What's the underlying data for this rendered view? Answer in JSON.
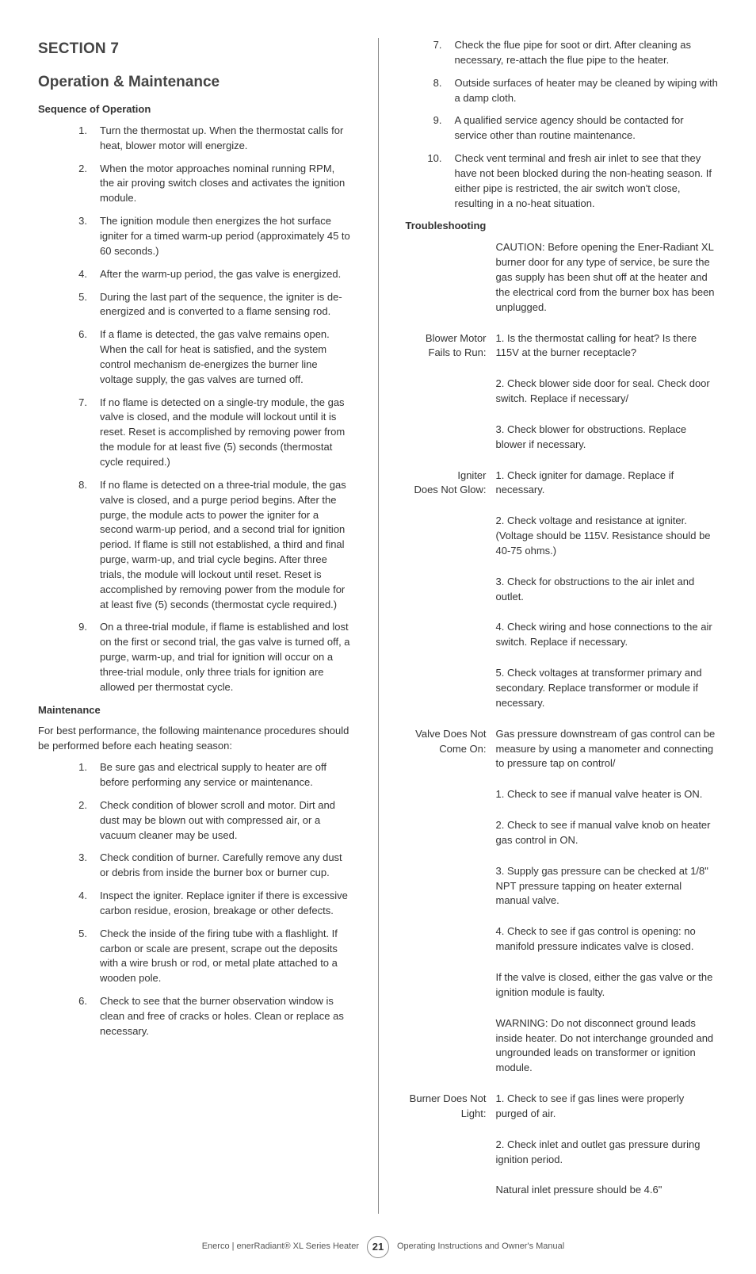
{
  "section_label": "SECTION 7",
  "section_title": "Operation & Maintenance",
  "sequence_heading": "Sequence of Operation",
  "sequence_items": [
    "Turn the thermostat up. When the thermostat calls for heat, blower motor will energize.",
    "When the motor approaches nominal running RPM, the air proving switch closes and activates the ignition module.",
    "The ignition module then energizes the hot surface igniter for a timed warm-up period (approximately 45 to 60 seconds.)",
    "After the warm-up period, the gas valve is energized.",
    "During the last part of the sequence, the igniter is de-energized and is converted to a flame sensing rod.",
    "If a flame is detected, the gas valve remains open. When the call for heat is satisfied, and the system control mechanism de-energizes the burner line voltage supply, the gas valves are turned off.",
    "If no flame is detected on a single-try module, the gas valve is closed, and the module will lockout until it is reset. Reset is accomplished by removing power from the module for at least five (5) seconds (thermostat cycle required.)",
    "If no flame is detected on a three-trial module, the gas valve is closed, and a purge period begins. After the purge, the module acts to power the igniter for a second warm-up period, and a second trial for ignition period. If flame is still not established, a third and final purge, warm-up, and trial cycle begins. After three trials, the module will lockout until reset. Reset is accomplished by removing power from the module for at least five (5) seconds (thermostat cycle required.)",
    "On a three-trial module, if flame is established and lost on the first or second trial, the gas valve is turned off, a purge, warm-up, and trial for ignition will occur on a three-trial module, only three trials for ignition are allowed per thermostat cycle."
  ],
  "maintenance_heading": "Maintenance",
  "maintenance_intro": "For best performance, the following maintenance procedures should be performed before each heating season:",
  "maintenance_items_left": [
    "Be sure gas and electrical supply to heater are off before performing any service or maintenance.",
    "Check condition of blower scroll and motor. Dirt and dust may be blown out with compressed air, or a vacuum cleaner may be used.",
    "Check condition of burner. Carefully remove any dust or debris from inside the burner box or burner cup.",
    "Inspect the igniter. Replace igniter if there is excessive carbon residue, erosion, breakage or other defects.",
    "Check the inside of the firing tube with a flashlight. If carbon or scale are present, scrape out the deposits with a wire brush or rod, or metal plate attached to a wooden pole.",
    "Check to see that the burner observation window is clean and free of cracks or holes. Clean or replace as necessary."
  ],
  "maintenance_items_right": [
    {
      "n": "7.",
      "t": "Check the flue pipe for soot or dirt. After cleaning as necessary, re-attach the flue pipe to the heater."
    },
    {
      "n": "8.",
      "t": "Outside surfaces of heater may be cleaned by wiping with a damp cloth."
    },
    {
      "n": "9.",
      "t": "A qualified service agency should be contacted for service other than routine maintenance."
    },
    {
      "n": "10.",
      "t": "Check vent terminal and fresh air inlet to see that they have not been blocked during the non-heating season. If either pipe is restricted, the air switch won't close, resulting in a no-heat situation."
    }
  ],
  "troubleshooting_heading": "Troubleshooting",
  "troubleshooting": [
    {
      "label_lines": [
        "Blower Motor",
        "Fails to Run:"
      ],
      "paras": [
        "CAUTION: Before opening the Ener-Radiant XL burner door for any type of service, be sure the gas supply has been shut off at the heater and the electrical cord from the burner box has been unplugged.",
        "1. Is the thermostat calling for heat? Is there 115V at the burner receptacle?",
        "2. Check blower side door for seal. Check door switch. Replace if necessary/",
        "3. Check blower for obstructions. Replace blower if necessary."
      ],
      "label_align_index": 1
    },
    {
      "label_lines": [
        "Igniter",
        "Does Not Glow:"
      ],
      "paras": [
        "1. Check igniter for damage. Replace if necessary.",
        "2. Check voltage and resistance at igniter. (Voltage should be 115V. Resistance should be 40-75 ohms.)",
        "3. Check for obstructions to the air inlet and outlet.",
        "4. Check wiring and hose connections to the air switch. Replace if necessary.",
        "5. Check voltages at transformer primary and secondary. Replace transformer or module if necessary."
      ],
      "label_align_index": 0
    },
    {
      "label_lines": [
        "Valve Does Not",
        "Come On:"
      ],
      "paras": [
        "Gas pressure downstream of gas control can be measure by using a manometer and connecting to pressure tap on control/",
        "1. Check to see if manual valve heater is ON.",
        "2. Check to see if manual valve knob on heater gas control in ON.",
        "3. Supply gas pressure can be checked at 1/8\" NPT pressure tapping on heater external manual valve.",
        "4. Check to see if gas control is opening: no manifold pressure indicates valve is closed.",
        "If the valve is closed, either the gas valve or the ignition module is faulty.",
        "WARNING: Do not disconnect ground leads inside heater. Do not interchange grounded and ungrounded leads on transformer or ignition module."
      ],
      "label_align_index": 0
    },
    {
      "label_lines": [
        "Burner Does Not",
        "Light:"
      ],
      "paras": [
        "1. Check to see if gas lines were properly purged of air.",
        "2. Check inlet and outlet gas pressure during ignition period.",
        "Natural inlet pressure should be 4.6\""
      ],
      "label_align_index": 0
    }
  ],
  "footer_left": "Enerco | enerRadiant® XL Series Heater",
  "page_number": "21",
  "footer_right": "Operating Instructions and Owner's Manual"
}
